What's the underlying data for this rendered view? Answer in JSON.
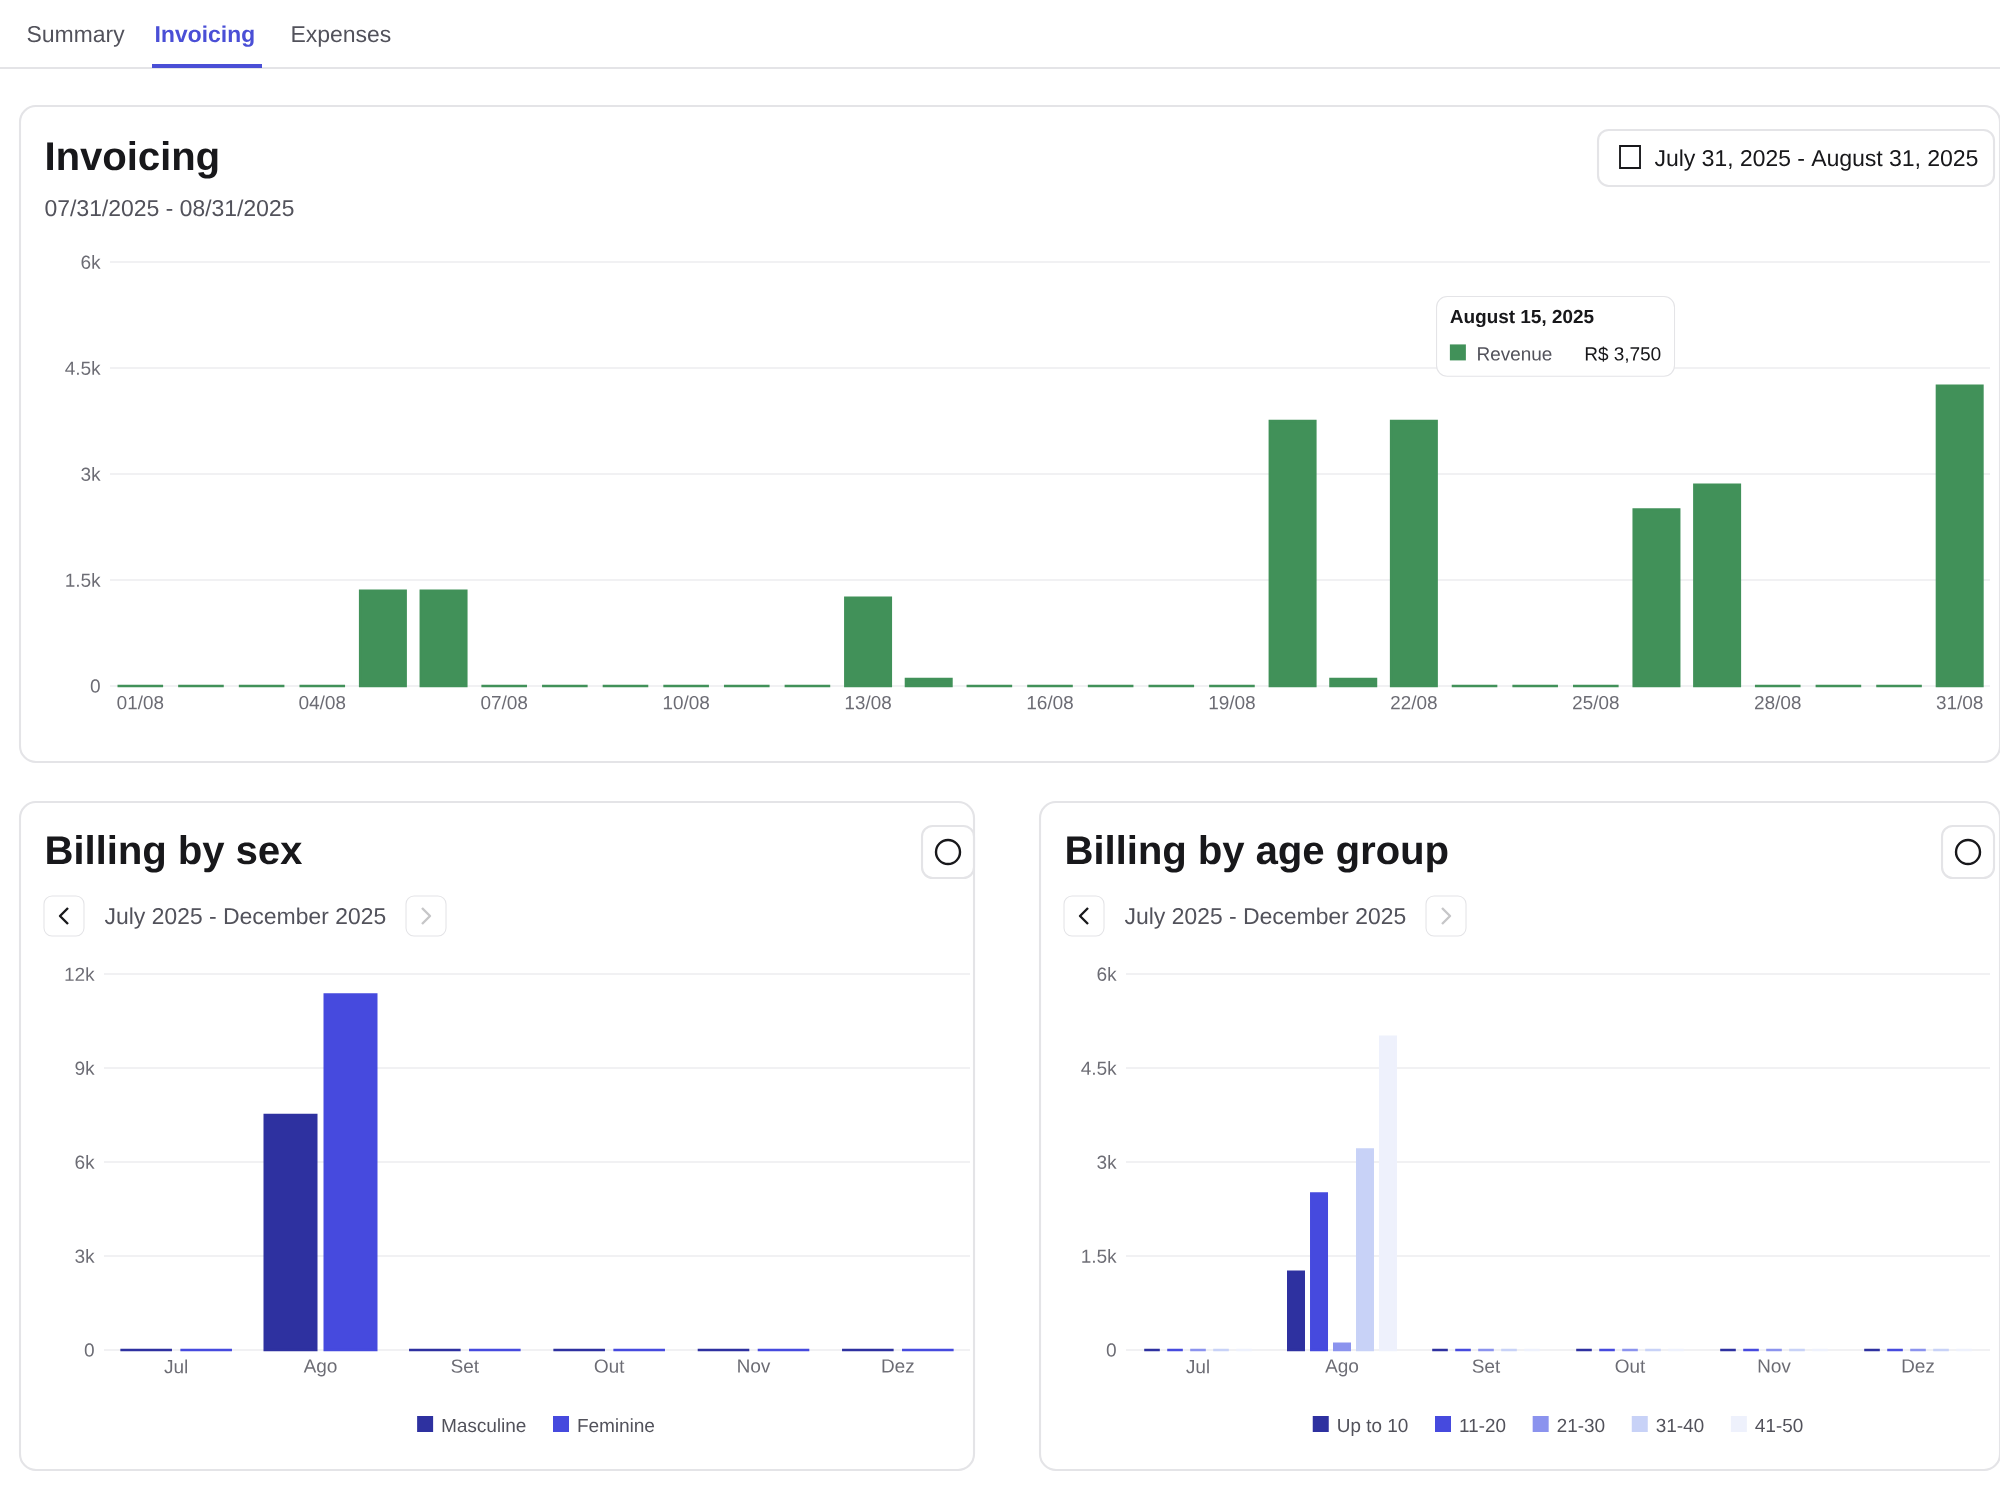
{
  "chart_data": [
    {
      "type": "bar",
      "title": "Invoicing",
      "subtitle": "07/31/2025 - 08/31/2025",
      "annotations": [
        "Summary",
        "Invoicing",
        "Expenses",
        "July 31, 2025 -  August 31, 2025",
        "August 15, 2025",
        "R$ 3,750"
      ],
      "categories": [
        "01/08",
        null,
        null,
        "04/08",
        null,
        null,
        "07/08",
        null,
        null,
        "10/08",
        null,
        null,
        "13/08",
        null,
        null,
        "16/08",
        null,
        null,
        "19/08",
        null,
        null,
        "22/08",
        null,
        null,
        "25/08",
        null,
        null,
        "28/08",
        null,
        null,
        "31/08"
      ],
      "series": [
        {
          "name": "Revenue",
          "color": "#419159",
          "values": [
            0,
            0,
            0,
            0,
            1350,
            1350,
            0,
            0,
            0,
            0,
            0,
            0,
            1250,
            100,
            0,
            0,
            0,
            0,
            0,
            3750,
            100,
            3750,
            0,
            0,
            0,
            2500,
            2850,
            0,
            0,
            0,
            4250
          ]
        }
      ],
      "ylim": [
        0,
        6000
      ],
      "yticks": [
        0,
        {
          "value": 1500,
          "label": "1.5k"
        },
        {
          "value": 3000,
          "label": "3k"
        },
        {
          "value": 4500,
          "label": "4.5k"
        },
        {
          "value": 6000,
          "label": "6k"
        }
      ],
      "grid": "y"
    },
    {
      "type": "bar",
      "title": "Billing by sex",
      "subtitle": "July 2025 - December 2025",
      "categories": [
        "Jul",
        "Ago",
        "Set",
        "Out",
        "Nov",
        "Dez"
      ],
      "series": [
        {
          "name": "Masculine",
          "color": "#2e31a0",
          "values": [
            0,
            7500,
            0,
            0,
            0,
            0
          ]
        },
        {
          "name": "Feminine",
          "color": "#464ade",
          "values": [
            0,
            11350,
            0,
            0,
            0,
            0
          ]
        }
      ],
      "ylim": [
        0,
        12000
      ],
      "yticks": [
        0,
        {
          "value": 3000,
          "label": "3k"
        },
        {
          "value": 6000,
          "label": "6k"
        },
        {
          "value": 9000,
          "label": "9k"
        },
        {
          "value": 12000,
          "label": "12k"
        }
      ],
      "grid": "y",
      "legend": "bottom"
    },
    {
      "type": "bar",
      "title": "Billing by age group",
      "subtitle": "July 2025 - December 2025",
      "categories": [
        "Jul",
        "Ago",
        "Set",
        "Out",
        "Nov",
        "Dez"
      ],
      "series": [
        {
          "name": "Up to 10",
          "color": "#2e31a0",
          "values": [
            0,
            1250,
            0,
            0,
            0,
            0
          ]
        },
        {
          "name": "11-20",
          "color": "#464ade",
          "values": [
            0,
            2500,
            0,
            0,
            0,
            0
          ]
        },
        {
          "name": "21-30",
          "color": "#8b93ee",
          "values": [
            0,
            100,
            0,
            0,
            0,
            0
          ]
        },
        {
          "name": "31-40",
          "color": "#c8d2f7",
          "values": [
            0,
            3200,
            0,
            0,
            0,
            0
          ]
        },
        {
          "name": "41-50",
          "color": "#eef1fc",
          "values": [
            0,
            5000,
            0,
            0,
            0,
            0
          ]
        }
      ],
      "ylim": [
        0,
        6000
      ],
      "yticks": [
        0,
        {
          "value": 1500,
          "label": "1.5k"
        },
        {
          "value": 3000,
          "label": "3k"
        },
        {
          "value": 4500,
          "label": "4.5k"
        },
        {
          "value": 6000,
          "label": "6k"
        }
      ],
      "grid": "y",
      "legend": "bottom"
    }
  ]
}
